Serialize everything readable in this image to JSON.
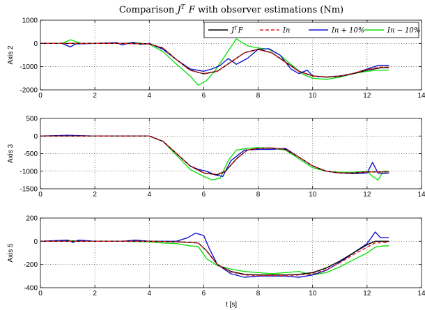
{
  "chart_data": {
    "type": "line",
    "title": "Comparison J^T F with observer estimations (Nm)",
    "xlabel": "t [s]",
    "xlim": [
      0,
      14
    ],
    "xticks": [
      0,
      2,
      4,
      6,
      8,
      10,
      12,
      14
    ],
    "grid": true,
    "legend": {
      "placement": "top-right",
      "entries": [
        "J^T F",
        "In",
        "In + 10%",
        "In − 10%"
      ]
    },
    "series_styles": [
      {
        "color": "#000000",
        "dash": "solid"
      },
      {
        "color": "#e31a1c",
        "dash": "dashed"
      },
      {
        "color": "#1010d0",
        "dash": "solid"
      },
      {
        "color": "#10e010",
        "dash": "solid"
      }
    ],
    "subplots": [
      {
        "ylabel": "Axis 2",
        "ylim": [
          -2000,
          1000
        ],
        "yticks": [
          -2000,
          -1000,
          0,
          1000
        ],
        "show_legend": true,
        "series": [
          {
            "x": [
              0,
              1,
              2,
              3,
              4,
              4.5,
              5,
              5.5,
              6,
              6.5,
              7,
              7.5,
              8,
              8.5,
              9,
              9.5,
              10,
              10.5,
              11,
              11.5,
              12,
              12.5,
              12.8
            ],
            "y": [
              0,
              0,
              0,
              0,
              -20,
              -200,
              -700,
              -1150,
              -1310,
              -1200,
              -800,
              -400,
              -250,
              -400,
              -800,
              -1200,
              -1400,
              -1450,
              -1420,
              -1300,
              -1150,
              -1050,
              -1050
            ]
          },
          {
            "x": [
              0,
              1,
              2,
              3,
              4,
              4.5,
              5,
              5.5,
              6,
              6.5,
              7,
              7.5,
              8,
              8.5,
              9,
              9.5,
              10,
              10.5,
              11,
              11.5,
              12,
              12.5,
              12.8
            ],
            "y": [
              0,
              0,
              0,
              0,
              -20,
              -200,
              -700,
              -1150,
              -1300,
              -1190,
              -800,
              -400,
              -260,
              -410,
              -810,
              -1210,
              -1400,
              -1440,
              -1410,
              -1280,
              -1120,
              -1020,
              -1020
            ]
          },
          {
            "x": [
              0,
              0.8,
              1.1,
              1.3,
              2,
              2.8,
              3,
              3.4,
              3.7,
              4,
              4.5,
              5,
              5.5,
              6,
              6.3,
              6.6,
              6.9,
              7.2,
              7.6,
              8,
              8.4,
              8.8,
              9.2,
              9.5,
              9.8,
              10,
              10.5,
              11,
              11.5,
              12,
              12.4,
              12.8
            ],
            "y": [
              0,
              0,
              -150,
              -20,
              0,
              30,
              -60,
              50,
              -40,
              0,
              -250,
              -700,
              -1100,
              -1200,
              -1100,
              -950,
              -650,
              -900,
              -650,
              -250,
              -230,
              -500,
              -1100,
              -1300,
              -1150,
              -1400,
              -1450,
              -1400,
              -1300,
              -1100,
              -950,
              -950
            ]
          },
          {
            "x": [
              0,
              0.8,
              1.1,
              1.5,
              2,
              3,
              3.5,
              4,
              4.5,
              5,
              5.5,
              5.8,
              6.1,
              6.4,
              6.8,
              7.2,
              7.6,
              8,
              8.4,
              8.8,
              9.2,
              9.6,
              10,
              10.5,
              11,
              11.5,
              12,
              12.4,
              12.8
            ],
            "y": [
              0,
              0,
              160,
              0,
              0,
              0,
              30,
              -30,
              -350,
              -900,
              -1400,
              -1800,
              -1600,
              -1200,
              -500,
              200,
              -100,
              -200,
              -250,
              -500,
              -900,
              -1300,
              -1500,
              -1550,
              -1450,
              -1300,
              -1200,
              -1150,
              -1150
            ]
          }
        ]
      },
      {
        "ylabel": "Axis 3",
        "ylim": [
          -1500,
          500
        ],
        "yticks": [
          -1500,
          -1000,
          -500,
          0,
          500
        ],
        "show_legend": false,
        "series": [
          {
            "x": [
              0,
              2,
              4,
              4.5,
              5,
              5.5,
              6,
              6.5,
              6.8,
              7.2,
              7.6,
              8,
              8.5,
              9,
              9.5,
              10,
              10.5,
              11,
              11.5,
              12,
              12.8
            ],
            "y": [
              0,
              0,
              0,
              -150,
              -500,
              -850,
              -1050,
              -1100,
              -1000,
              -650,
              -400,
              -350,
              -340,
              -380,
              -600,
              -850,
              -1000,
              -1050,
              -1050,
              -1020,
              -1020
            ]
          },
          {
            "x": [
              0,
              2,
              4,
              4.5,
              5,
              5.5,
              6,
              6.5,
              6.8,
              7.2,
              7.6,
              8,
              8.5,
              9,
              9.5,
              10,
              10.5,
              11,
              11.5,
              12,
              12.8
            ],
            "y": [
              0,
              0,
              0,
              -150,
              -500,
              -850,
              -1050,
              -1090,
              -990,
              -650,
              -400,
              -350,
              -340,
              -380,
              -600,
              -850,
              -1000,
              -1050,
              -1050,
              -1020,
              -1020
            ]
          },
          {
            "x": [
              0,
              1,
              2,
              4,
              4.5,
              5,
              5.5,
              5.8,
              6.1,
              6.4,
              6.7,
              7,
              7.5,
              8,
              8.5,
              9,
              9.5,
              10,
              10.5,
              11,
              11.5,
              12,
              12.2,
              12.4,
              12.6,
              12.8
            ],
            "y": [
              0,
              20,
              0,
              0,
              -150,
              -500,
              -850,
              -950,
              -1000,
              -1100,
              -1150,
              -700,
              -400,
              -380,
              -380,
              -350,
              -600,
              -850,
              -1000,
              -1050,
              -1070,
              -1050,
              -750,
              -1050,
              -1070,
              -1050
            ]
          },
          {
            "x": [
              0,
              2,
              4,
              4.5,
              5,
              5.5,
              6,
              6.3,
              6.6,
              6.9,
              7.2,
              7.6,
              8,
              8.5,
              9,
              9.5,
              10,
              10.5,
              11,
              11.5,
              12,
              12.2,
              12.4,
              12.6,
              12.8
            ],
            "y": [
              0,
              0,
              0,
              -150,
              -550,
              -950,
              -1150,
              -1250,
              -1200,
              -700,
              -400,
              -350,
              -330,
              -350,
              -400,
              -650,
              -900,
              -1000,
              -1030,
              -1030,
              -1000,
              -1150,
              -1250,
              -1000,
              -1000
            ]
          }
        ]
      },
      {
        "ylabel": "Axis 5",
        "ylim": [
          -400,
          200
        ],
        "yticks": [
          -400,
          -200,
          0,
          200
        ],
        "show_legend": false,
        "series": [
          {
            "x": [
              0,
              2,
              4,
              5,
              5.5,
              5.8,
              6.1,
              6.5,
              7,
              7.5,
              8,
              8.5,
              9,
              9.5,
              10,
              10.5,
              11,
              11.5,
              12,
              12.3,
              12.8
            ],
            "y": [
              0,
              0,
              0,
              -5,
              -10,
              -15,
              -80,
              -200,
              -260,
              -285,
              -290,
              -290,
              -290,
              -285,
              -270,
              -230,
              -170,
              -100,
              -30,
              0,
              0
            ]
          },
          {
            "x": [
              0,
              2,
              4,
              5,
              5.5,
              5.8,
              6.1,
              6.5,
              7,
              7.5,
              8,
              8.5,
              9,
              9.5,
              10,
              10.5,
              11,
              11.5,
              12,
              12.3,
              12.8
            ],
            "y": [
              0,
              0,
              0,
              -5,
              -10,
              -15,
              -80,
              -200,
              -265,
              -290,
              -295,
              -295,
              -295,
              -290,
              -280,
              -245,
              -185,
              -115,
              -50,
              -15,
              -10
            ]
          },
          {
            "x": [
              0,
              1,
              1.2,
              1.4,
              2,
              3,
              3.5,
              4,
              5,
              5.4,
              5.7,
              6,
              6.2,
              6.5,
              7,
              7.5,
              8,
              8.5,
              9,
              9.5,
              10,
              10.5,
              11,
              11.5,
              12,
              12.3,
              12.5,
              12.8
            ],
            "y": [
              0,
              10,
              -10,
              10,
              0,
              0,
              10,
              0,
              0,
              30,
              70,
              50,
              -60,
              -200,
              -280,
              -310,
              -300,
              -300,
              -300,
              -310,
              -290,
              -250,
              -180,
              -100,
              -20,
              80,
              30,
              30
            ]
          },
          {
            "x": [
              0,
              1,
              2,
              3,
              4,
              4.5,
              5,
              5.5,
              5.8,
              6.1,
              6.5,
              7,
              7.5,
              8,
              8.5,
              9,
              9.5,
              10,
              10.5,
              11,
              11.5,
              12,
              12.3,
              12.6,
              12.8
            ],
            "y": [
              0,
              5,
              0,
              0,
              -5,
              -15,
              -20,
              -40,
              -45,
              -150,
              -210,
              -240,
              -260,
              -270,
              -280,
              -270,
              -260,
              -290,
              -270,
              -220,
              -160,
              -100,
              -50,
              -40,
              -40
            ]
          }
        ]
      }
    ]
  }
}
